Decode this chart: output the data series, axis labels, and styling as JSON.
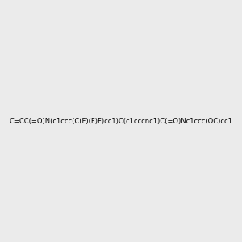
{
  "smiles": "C=CC(=O)N(c1ccc(C(F)(F)F)cc1)C(c1cccnc1)C(=O)Nc1ccc(OC)cc1",
  "image_size": 300,
  "background_color": "#ebebeb",
  "bond_color": "#2d6b5e",
  "atom_colors": {
    "N": "#2222cc",
    "O": "#cc2222",
    "F": "#cc22cc",
    "C": "#2d6b5e",
    "H": "#555555"
  },
  "title": ""
}
